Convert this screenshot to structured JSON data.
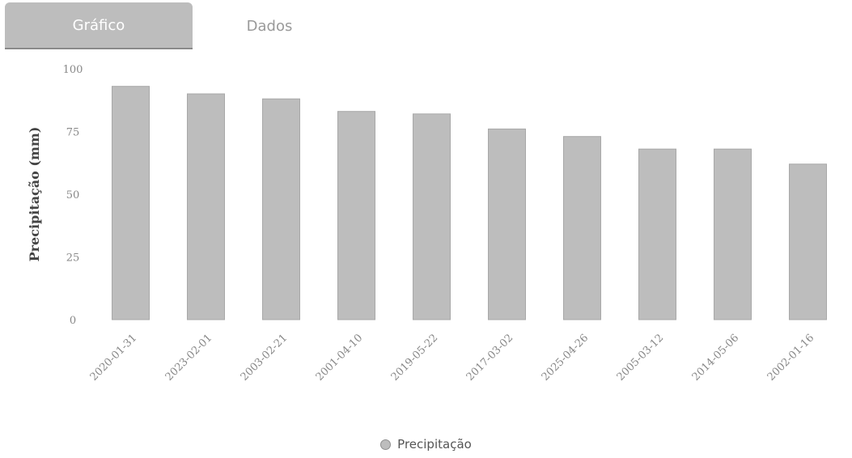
{
  "tabs": [
    {
      "label": "Gráfico",
      "active": true
    },
    {
      "label": "Dados",
      "active": false
    }
  ],
  "chart_data": {
    "type": "bar",
    "title": "",
    "xlabel": "",
    "ylabel": "Precipitação (mm)",
    "ylim": [
      0,
      100
    ],
    "yticks": [
      "0",
      "25",
      "50",
      "75",
      "100"
    ],
    "grid": false,
    "legend_position": "bottom",
    "bar_color": "#bdbdbd",
    "categories": [
      "2020-01-31",
      "2023-02-01",
      "2003-02-21",
      "2001-04-10",
      "2019-05-22",
      "2017-03-02",
      "2025-04-26",
      "2005-03-12",
      "2014-05-06",
      "2002-01-16"
    ],
    "series": [
      {
        "name": "Precipitação",
        "values": [
          93,
          90,
          88,
          83,
          82,
          76,
          73,
          68,
          68,
          62
        ]
      }
    ]
  }
}
